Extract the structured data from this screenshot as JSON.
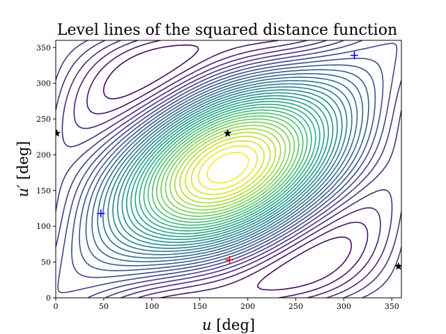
{
  "chart_data": {
    "type": "contour",
    "title": "Level lines of the squared distance function",
    "xlabel": {
      "var": "u",
      "unit": "[deg]"
    },
    "ylabel": {
      "var": "u′",
      "unit": "[deg]"
    },
    "xlim": [
      0,
      360
    ],
    "ylim": [
      0,
      360
    ],
    "xticks": [
      0,
      50,
      100,
      150,
      200,
      250,
      300,
      350
    ],
    "yticks": [
      0,
      50,
      100,
      150,
      200,
      250,
      300,
      350
    ],
    "grid": false,
    "legend": "none",
    "colormap": "viridis",
    "field": {
      "description_terms": "squared distance between two orbits as function of eccentric anomalies u and u'",
      "levels": 34
    },
    "markers": [
      {
        "kind": "global-maximum",
        "symbol": "plus",
        "color": "#ff0000",
        "x": 181,
        "y": 53
      },
      {
        "kind": "local-minimum",
        "symbol": "plus",
        "color": "#0000ff",
        "x": 47,
        "y": 118
      },
      {
        "kind": "local-minimum",
        "symbol": "plus",
        "color": "#0000ff",
        "x": 311,
        "y": 339
      },
      {
        "kind": "saddle",
        "symbol": "star",
        "color": "#000000",
        "x": 1,
        "y": 230
      },
      {
        "kind": "saddle",
        "symbol": "star",
        "color": "#000000",
        "x": 179,
        "y": 230
      },
      {
        "kind": "saddle",
        "symbol": "star",
        "color": "#000000",
        "x": 357,
        "y": 44
      }
    ]
  }
}
